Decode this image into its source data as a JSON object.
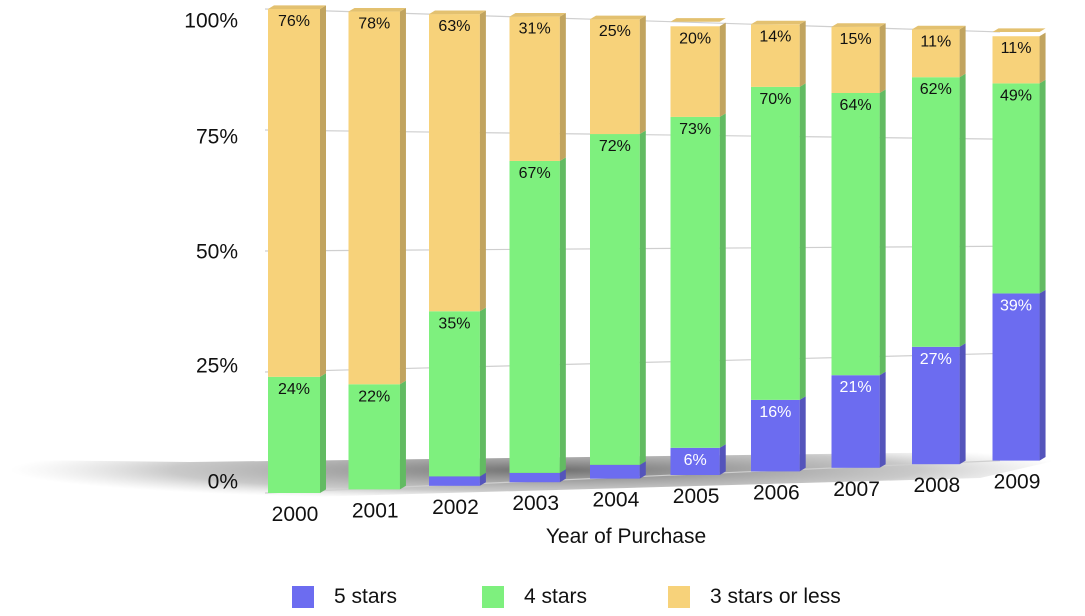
{
  "chart_data": {
    "type": "bar",
    "stacked": true,
    "categories": [
      "2000",
      "2001",
      "2002",
      "2003",
      "2004",
      "2005",
      "2006",
      "2007",
      "2008",
      "2009"
    ],
    "series": [
      {
        "name": "5 stars",
        "color": "#6c6cf0",
        "values": [
          0,
          0,
          2,
          2,
          3,
          6,
          16,
          21,
          27,
          39
        ],
        "labels": [
          "",
          "",
          "",
          "",
          "",
          "6%",
          "16%",
          "21%",
          "27%",
          "39%"
        ]
      },
      {
        "name": "4 stars",
        "color": "#7ef07e",
        "values": [
          24,
          22,
          35,
          67,
          72,
          73,
          70,
          64,
          62,
          49
        ],
        "labels": [
          "24%",
          "22%",
          "35%",
          "67%",
          "72%",
          "73%",
          "70%",
          "64%",
          "62%",
          "49%"
        ]
      },
      {
        "name": "3 stars or less",
        "color": "#f7d27a",
        "values": [
          76,
          78,
          63,
          31,
          25,
          20,
          14,
          15,
          11,
          11
        ],
        "labels": [
          "76%",
          "78%",
          "63%",
          "31%",
          "25%",
          "20%",
          "14%",
          "15%",
          "11%",
          "11%"
        ]
      }
    ],
    "yticks": [
      "0%",
      "25%",
      "50%",
      "75%",
      "100%"
    ],
    "ylim": [
      0,
      100
    ],
    "xlabel": "Year of Purchase",
    "grid": true,
    "legend_position": "bottom"
  }
}
